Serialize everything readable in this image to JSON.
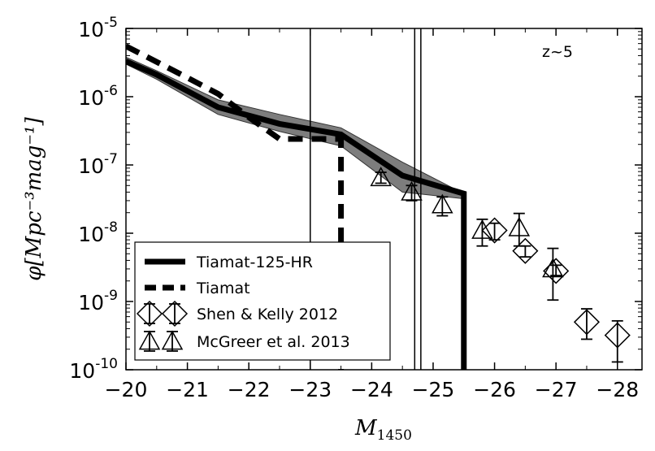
{
  "chart_data": {
    "type": "line",
    "title": "",
    "annotation": "z~5",
    "xlabel": "M",
    "xlabel_sub": "1450",
    "ylabel": "φ[Mpc⁻³mag⁻¹]",
    "xlim": [
      -20,
      -28.4
    ],
    "ylim_log10": [
      -10,
      -5
    ],
    "yscale": "log",
    "x_ticks": [
      -20,
      -21,
      -22,
      -23,
      -24,
      -25,
      -26,
      -27,
      -28
    ],
    "x_tick_labels": [
      "−20",
      "−21",
      "−22",
      "−23",
      "−24",
      "−25",
      "−26",
      "−27",
      "−28"
    ],
    "y_ticks_log10": [
      -10,
      -9,
      -8,
      -7,
      -6,
      -5
    ],
    "y_tick_labels": [
      {
        "base": "10",
        "exp": "-10"
      },
      {
        "base": "10",
        "exp": "-9"
      },
      {
        "base": "10",
        "exp": "-8"
      },
      {
        "base": "10",
        "exp": "-7"
      },
      {
        "base": "10",
        "exp": "-6"
      },
      {
        "base": "10",
        "exp": "-5"
      }
    ],
    "vertical_lines": [
      -23.0,
      -24.7,
      -24.8
    ],
    "legend_position": "lower-left",
    "series": [
      {
        "name": "Tiamat-125-HR",
        "style": "solid-thick",
        "x": [
          -20.0,
          -20.5,
          -21.5,
          -22.5,
          -23.5,
          -24.5,
          -25.5,
          -25.5
        ],
        "y": [
          3.3e-06,
          2.1e-06,
          7e-07,
          4e-07,
          2.8e-07,
          7e-08,
          3.8e-08,
          1e-10
        ],
        "band_upper": [
          3.8e-06,
          2.4e-06,
          9e-07,
          5.5e-07,
          3.5e-07,
          1.1e-07,
          3.8e-08
        ],
        "band_lower": [
          3e-06,
          1.8e-06,
          5.5e-07,
          3.1e-07,
          1.9e-07,
          4e-08,
          3.2e-08
        ]
      },
      {
        "name": "Tiamat",
        "style": "dashed-thick",
        "x": [
          -20.0,
          -21.0,
          -21.5,
          -22.0,
          -22.5,
          -23.0,
          -23.5,
          -23.5
        ],
        "y": [
          5.5e-06,
          1.9e-06,
          1.1e-06,
          5e-07,
          2.4e-07,
          2.4e-07,
          2.4e-07,
          1e-10
        ]
      },
      {
        "name": "Shen & Kelly 2012",
        "marker": "diamond",
        "x": [
          -26.0,
          -26.5,
          -27.0,
          -27.5,
          -28.0
        ],
        "y": [
          1.1e-08,
          5.5e-09,
          2.8e-09,
          5e-10,
          3.2e-10
        ],
        "y_lo": [
          8e-09,
          4.5e-09,
          2.4e-09,
          2.8e-10,
          1.3e-10
        ],
        "y_hi": [
          1.4e-08,
          6.5e-09,
          3.4e-09,
          7.8e-10,
          5.2e-10
        ]
      },
      {
        "name": "McGreer et al. 2013",
        "marker": "triangle",
        "x": [
          -24.15,
          -24.65,
          -25.15,
          -25.8,
          -26.4,
          -26.95
        ],
        "y": [
          6.5e-08,
          4e-08,
          2.6e-08,
          1.1e-08,
          1.2e-08,
          3e-09
        ],
        "y_lo": [
          5.4e-08,
          3e-08,
          1.8e-08,
          6.5e-09,
          6.5e-09,
          1.05e-09
        ],
        "y_hi": [
          7.8e-08,
          5e-08,
          3.4e-08,
          1.6e-08,
          1.95e-08,
          6e-09
        ]
      }
    ]
  }
}
